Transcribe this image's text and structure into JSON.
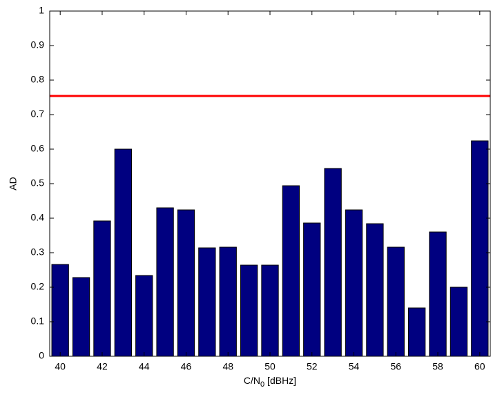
{
  "chart_data": {
    "type": "bar",
    "xlabel": [
      "C/N",
      "0",
      " [dBHz]"
    ],
    "ylabel": "AD",
    "x": [
      40,
      41,
      42,
      43,
      44,
      45,
      46,
      47,
      48,
      49,
      50,
      51,
      52,
      53,
      54,
      55,
      56,
      57,
      58,
      59,
      60
    ],
    "values": [
      0.266,
      0.228,
      0.392,
      0.6,
      0.234,
      0.43,
      0.424,
      0.314,
      0.316,
      0.264,
      0.264,
      0.494,
      0.386,
      0.544,
      0.424,
      0.384,
      0.316,
      0.14,
      0.36,
      0.2,
      0.624
    ],
    "color": "#000080",
    "threshold": {
      "value": 0.754,
      "color": "#ff0000"
    },
    "xlim": [
      39.5,
      60.5
    ],
    "xticks": [
      40,
      42,
      44,
      46,
      48,
      50,
      52,
      54,
      56,
      58,
      60
    ],
    "ylim": [
      0,
      1
    ],
    "yticks": [
      0,
      0.1,
      0.2,
      0.3,
      0.4,
      0.5,
      0.6,
      0.7,
      0.8,
      0.9,
      1
    ],
    "grid": false
  }
}
